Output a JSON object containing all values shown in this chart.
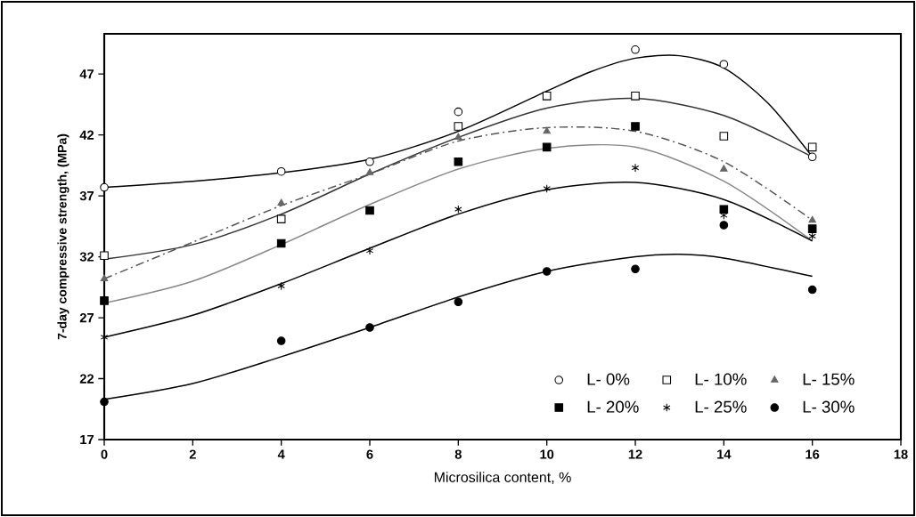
{
  "chart_data": {
    "type": "scatter",
    "xlabel": "Microsilica content, %",
    "ylabel": "7-day compressive strength, (MPa)",
    "xlim": [
      0,
      18
    ],
    "ylim": [
      17,
      50.3
    ],
    "xticks": [
      0,
      2,
      4,
      6,
      8,
      10,
      12,
      14,
      16,
      18
    ],
    "yticks": [
      17,
      22,
      27,
      32,
      37,
      42,
      47
    ],
    "grid": false,
    "legend": "bottom right",
    "series": [
      {
        "type": "line",
        "color": "#000000",
        "marker": "none",
        "line_style": "solid",
        "x": [
          0,
          2,
          4,
          6,
          8,
          10,
          11,
          12,
          13,
          14,
          15,
          16
        ],
        "values": [
          37.7,
          38.2,
          38.9,
          40.0,
          42.3,
          45.6,
          47.2,
          48.3,
          48.5,
          47.5,
          44.6,
          40.2
        ]
      },
      {
        "type": "line",
        "color": "#333333",
        "marker": "none",
        "line_style": "solid",
        "x": [
          0,
          2,
          4,
          6,
          8,
          10,
          12,
          14,
          16
        ],
        "values": [
          31.8,
          33.0,
          35.5,
          38.8,
          41.8,
          44.2,
          45.0,
          43.6,
          40.2
        ]
      },
      {
        "type": "line",
        "color": "#555555",
        "marker": "none",
        "line_style": "dashed",
        "x": [
          0,
          2,
          4,
          6,
          8,
          10,
          12,
          14,
          16
        ],
        "values": [
          30.2,
          33.2,
          36.2,
          38.8,
          41.5,
          42.6,
          42.3,
          39.8,
          35.0
        ]
      },
      {
        "type": "line",
        "color": "#888888",
        "marker": "none",
        "line_style": "solid",
        "x": [
          0,
          2,
          4,
          6,
          8,
          10,
          12,
          14,
          16
        ],
        "values": [
          28.2,
          30.0,
          33.0,
          36.3,
          39.2,
          40.9,
          41.0,
          38.2,
          33.3
        ]
      },
      {
        "type": "line",
        "color": "#000000",
        "marker": "none",
        "line_style": "solid",
        "x": [
          0,
          2,
          4,
          6,
          8,
          10,
          12,
          14,
          16
        ],
        "values": [
          25.4,
          27.2,
          29.8,
          32.7,
          35.5,
          37.5,
          38.1,
          36.7,
          33.3
        ]
      },
      {
        "type": "line",
        "color": "#000000",
        "marker": "none",
        "line_style": "solid",
        "x": [
          0,
          2,
          4,
          6,
          8,
          10,
          12,
          13,
          14,
          16
        ],
        "values": [
          20.3,
          21.6,
          23.8,
          26.2,
          28.7,
          30.8,
          32.0,
          32.2,
          31.9,
          30.4
        ]
      },
      {
        "name": "L- 0%",
        "color": "#ffffff",
        "marker": "circle",
        "x": [
          0,
          4,
          6,
          8,
          10,
          12,
          14,
          16
        ],
        "values": [
          37.7,
          39.0,
          39.8,
          43.9,
          null,
          49.0,
          47.8,
          40.2
        ]
      },
      {
        "name": "L- 10%",
        "color": "#ffffff",
        "marker": "square",
        "x": [
          0,
          4,
          6,
          8,
          10,
          12,
          14,
          16
        ],
        "values": [
          32.1,
          35.1,
          null,
          42.7,
          45.2,
          45.2,
          41.9,
          41.0
        ]
      },
      {
        "name": "L- 15%",
        "color": "#666666",
        "marker": "triangle",
        "x": [
          0,
          4,
          6,
          8,
          10,
          12,
          14,
          16
        ],
        "values": [
          30.2,
          36.4,
          38.9,
          41.8,
          42.3,
          null,
          39.2,
          35.0
        ]
      },
      {
        "name": "L- 20%",
        "color": "#000000",
        "marker": "square",
        "x": [
          0,
          4,
          6,
          8,
          10,
          12,
          14,
          16
        ],
        "values": [
          28.4,
          33.1,
          35.8,
          39.8,
          41.0,
          42.7,
          35.9,
          34.3
        ]
      },
      {
        "name": "L- 25%",
        "color": "#000000",
        "marker": "cross",
        "x": [
          0,
          4,
          6,
          8,
          10,
          12,
          14,
          16
        ],
        "values": [
          25.4,
          29.6,
          32.5,
          35.9,
          37.6,
          39.3,
          35.4,
          33.7
        ]
      },
      {
        "name": "L- 30%",
        "color": "#000000",
        "marker": "circle",
        "x": [
          0,
          4,
          6,
          8,
          10,
          12,
          14,
          16
        ],
        "values": [
          20.1,
          25.1,
          26.2,
          28.3,
          30.8,
          31.0,
          34.6,
          29.3
        ]
      }
    ]
  }
}
